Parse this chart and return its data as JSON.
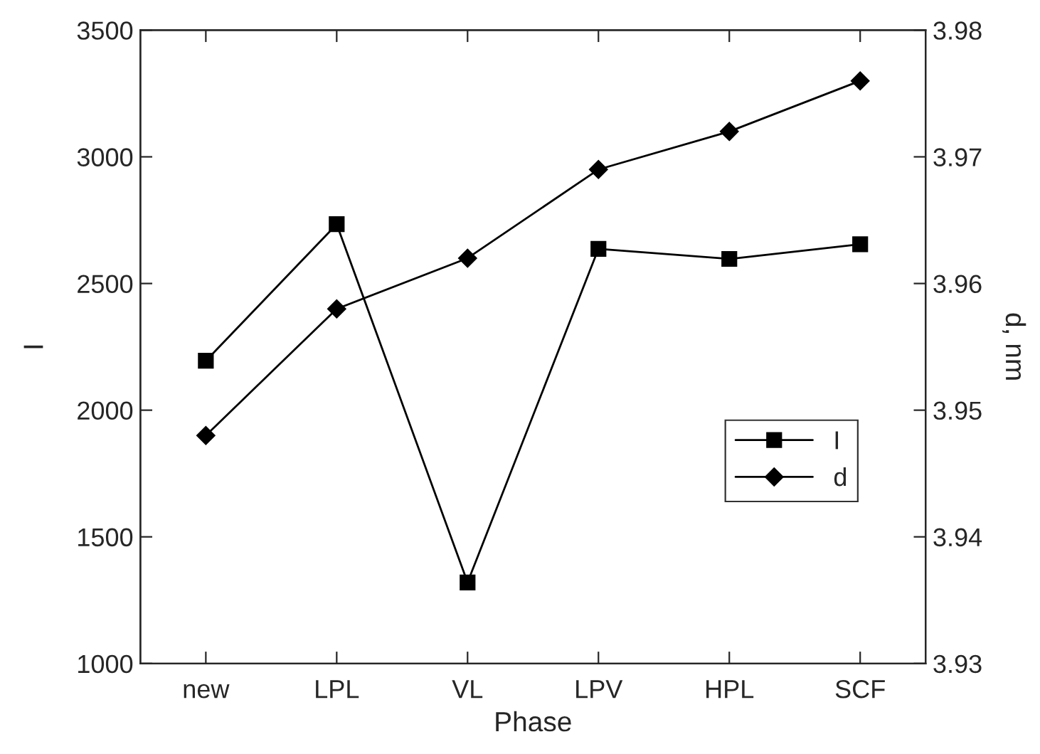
{
  "chart_data": {
    "type": "line",
    "xlabel": "Phase",
    "ylabel": "I",
    "y2label": "d, nm",
    "categories": [
      "new",
      "LPL",
      "VL",
      "LPV",
      "HPL",
      "SCF"
    ],
    "series": [
      {
        "name": "I",
        "color": "#000000",
        "marker": "square",
        "values": [
          2195,
          2734,
          1320,
          2637,
          2597,
          2655
        ]
      },
      {
        "name": "d",
        "color": "#000000",
        "marker": "diamond",
        "axis": "y2",
        "values": [
          3.948,
          3.958,
          3.962,
          3.969,
          3.972,
          3.976
        ]
      }
    ],
    "ylim": [
      1000,
      3500
    ],
    "yticks": [
      1000,
      1500,
      2000,
      2500,
      3000,
      3500
    ],
    "y2lim": [
      3.93,
      3.98
    ],
    "y2ticks": [
      {
        "value": 3.93,
        "label": "3.93"
      },
      {
        "value": 3.94,
        "label": "3.94"
      },
      {
        "value": 3.95,
        "label": "3.95"
      },
      {
        "value": 3.96,
        "label": "3.96"
      },
      {
        "value": 3.97,
        "label": "3.97"
      },
      {
        "value": 3.98,
        "label": "3.98"
      }
    ],
    "grid": false,
    "legend": "right",
    "line_style": "solid"
  }
}
